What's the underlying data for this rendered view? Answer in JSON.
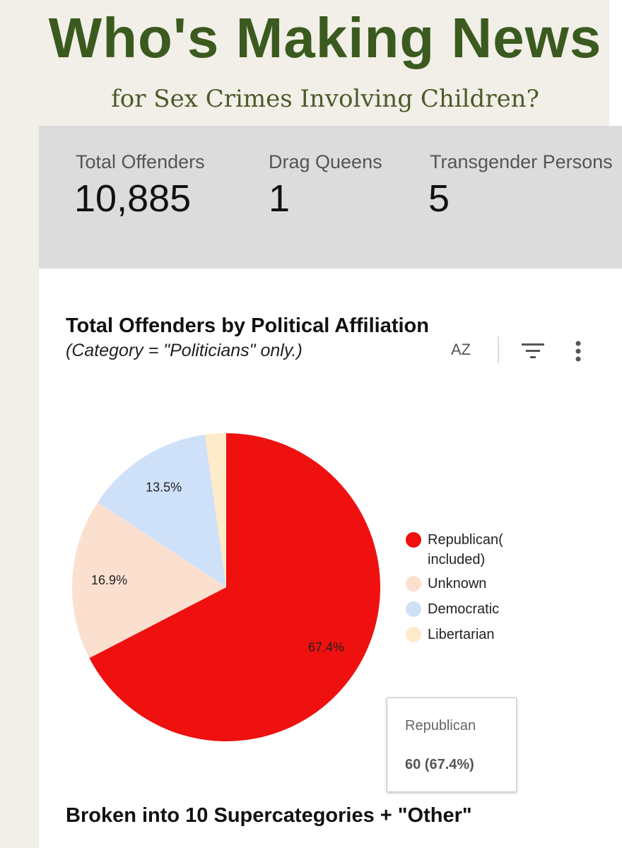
{
  "header": {
    "title": "Who's Making News",
    "subtitle": "for Sex Crimes Involving Children?"
  },
  "stats": [
    {
      "label": "Total Offenders",
      "value": "10,885"
    },
    {
      "label": "Drag Queens",
      "value": "1"
    },
    {
      "label": "Transgender Persons",
      "value": "5"
    }
  ],
  "toolbar": {
    "sort": "AZ"
  },
  "chart_data": {
    "type": "pie",
    "title": "Total Offenders by Political Affiliation",
    "subtitle": "(Category = \"Politicians\" only.)",
    "categories": [
      "Republican( included)",
      "Unknown",
      "Democratic",
      "Libertarian"
    ],
    "values": [
      67.4,
      16.9,
      13.5,
      2.2
    ],
    "value_labels": [
      "67.4%",
      "16.9%",
      "13.5%",
      null
    ],
    "colors": [
      "#ef1010",
      "#fce0cf",
      "#cfe0f9",
      "#fdebc9"
    ]
  },
  "tooltip": {
    "title": "Republican",
    "text": "60 (67.4%)"
  },
  "footer": {
    "heading": "Broken into 10 Supercategories + \"Other\""
  }
}
